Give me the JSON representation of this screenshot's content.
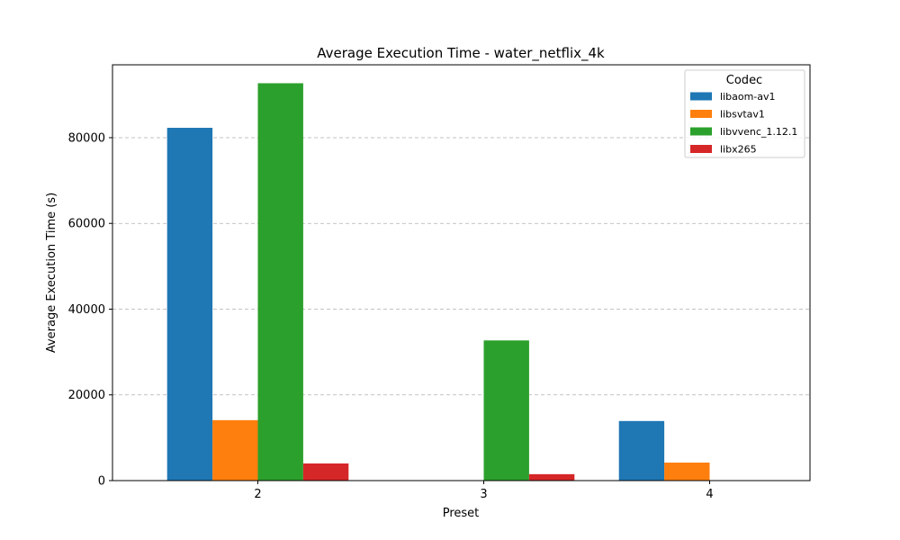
{
  "chart_data": {
    "type": "bar",
    "title": "Average Execution Time - water_netflix_4k",
    "xlabel": "Preset",
    "ylabel": "Average Execution Time (s)",
    "categories": [
      "2",
      "3",
      "4"
    ],
    "ylim": [
      0,
      97000
    ],
    "yticks": [
      0,
      20000,
      40000,
      60000,
      80000
    ],
    "ytick_labels": [
      "0",
      "20000",
      "40000",
      "60000",
      "80000"
    ],
    "grid": "y-dashed",
    "legend": {
      "title": "Codec",
      "position": "top-right"
    },
    "series": [
      {
        "name": "libaom-av1",
        "color": "#1f77b4",
        "values": [
          82300,
          null,
          13900
        ]
      },
      {
        "name": "libsvtav1",
        "color": "#ff7f0e",
        "values": [
          14100,
          null,
          4200
        ]
      },
      {
        "name": "libvvenc_1.12.1",
        "color": "#2ca02c",
        "values": [
          92700,
          32700,
          null
        ]
      },
      {
        "name": "libx265",
        "color": "#d62728",
        "values": [
          4000,
          1500,
          null
        ]
      }
    ]
  }
}
